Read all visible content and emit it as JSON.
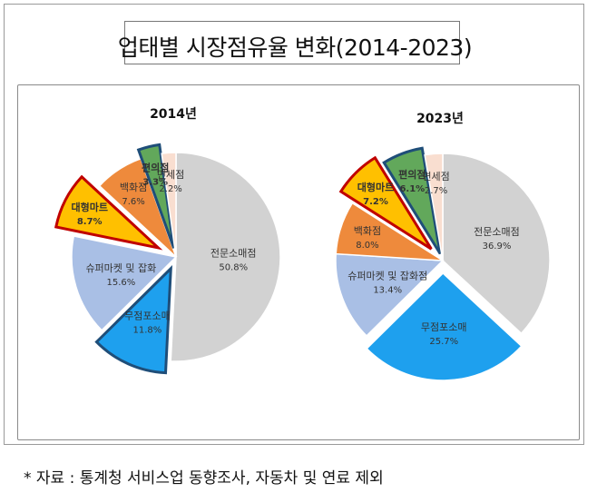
{
  "title": "업태별 시장점유율 변화(2014-2023)",
  "note": "* 자료 : 통계청 서비스업 동향조사, 자동차 및 연료 제외",
  "chart_data": [
    {
      "type": "pie",
      "title": "2014년",
      "slices": [
        {
          "label": "전문소매점",
          "value": 50.8,
          "value_label": "50.8%",
          "color": "#d2d2d2"
        },
        {
          "label": "무점포소매",
          "value": 11.8,
          "value_label": "11.8%",
          "color": "#1ea0ee"
        },
        {
          "label": "슈퍼마켓 및 잡화",
          "value": 15.6,
          "value_label": "15.6%",
          "color": "#a9bfe5"
        },
        {
          "label": "대형마트",
          "value": 8.7,
          "value_label": "8.7%",
          "color": "#ffc000"
        },
        {
          "label": "백화점",
          "value": 7.6,
          "value_label": "7.6%",
          "color": "#ee8a3c"
        },
        {
          "label": "편의점",
          "value": 3.3,
          "value_label": "3.3%",
          "color": "#62a85b"
        },
        {
          "label": "면세점",
          "value": 2.2,
          "value_label": "2.2%",
          "color": "#f9ded0"
        }
      ]
    },
    {
      "type": "pie",
      "title": "2023년",
      "slices": [
        {
          "label": "전문소매점",
          "value": 36.9,
          "value_label": "36.9%",
          "color": "#d2d2d2"
        },
        {
          "label": "무점포소매",
          "value": 25.7,
          "value_label": "25.7%",
          "color": "#1ea0ee"
        },
        {
          "label": "슈퍼마켓 및 잡화점",
          "value": 13.4,
          "value_label": "13.4%",
          "color": "#a9bfe5"
        },
        {
          "label": "백화점",
          "value": 8.0,
          "value_label": "8.0%",
          "color": "#ee8a3c"
        },
        {
          "label": "대형마트",
          "value": 7.2,
          "value_label": "7.2%",
          "color": "#ffc000"
        },
        {
          "label": "편의점",
          "value": 6.1,
          "value_label": "6.1%",
          "color": "#62a85b"
        },
        {
          "label": "면세점",
          "value": 2.7,
          "value_label": "2.7%",
          "color": "#f9ded0"
        }
      ]
    }
  ]
}
